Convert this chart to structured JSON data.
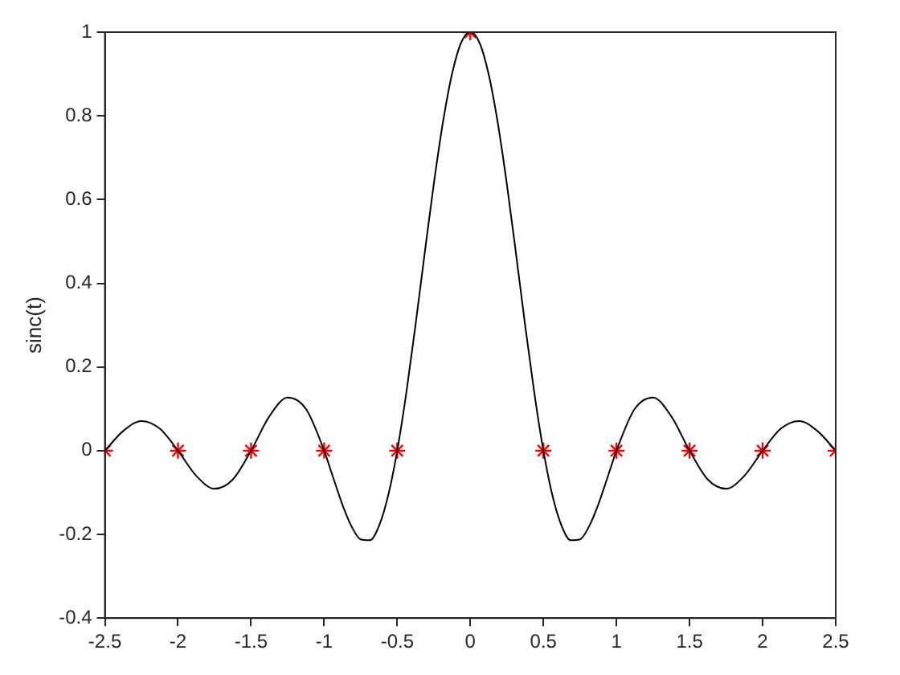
{
  "chart_data": {
    "type": "line",
    "ylabel": "sinc(t)",
    "xlim": [
      -2.5,
      2.5
    ],
    "xticks": [
      -2.5,
      -2,
      -1.5,
      -1,
      -0.5,
      0,
      0.5,
      1,
      1.5,
      2,
      2.5
    ],
    "ylim": [
      -0.4,
      1
    ],
    "yticks": [
      -0.4,
      -0.2,
      0,
      0.2,
      0.4,
      0.6,
      0.8,
      1
    ],
    "grid": false,
    "legend": false,
    "series": [
      {
        "color": "#000000",
        "marker": "none",
        "x": [
          -2.5,
          -2.375,
          -2.25,
          -2.125,
          -2,
          -1.875,
          -1.75,
          -1.625,
          -1.5,
          -1.375,
          -1.25,
          -1.125,
          -1,
          -0.9375,
          -0.875,
          -0.8125,
          -0.75,
          -0.6875,
          -0.625,
          -0.5625,
          -0.5,
          -0.4375,
          -0.375,
          -0.3125,
          -0.25,
          -0.1875,
          -0.125,
          -0.0625,
          0,
          0.0625,
          0.125,
          0.1875,
          0.25,
          0.3125,
          0.375,
          0.4375,
          0.5,
          0.5625,
          0.625,
          0.6875,
          0.75,
          0.8125,
          0.875,
          0.9375,
          1,
          1.125,
          1.25,
          1.375,
          1.5,
          1.625,
          1.75,
          1.875,
          2,
          2.125,
          2.25,
          2.375,
          2.5
        ],
        "values": [
          0,
          0.047,
          0.071,
          0.053,
          0,
          -0.06,
          -0.091,
          -0.069,
          0,
          0.082,
          0.127,
          0.1,
          0,
          -0.065,
          -0.129,
          -0.181,
          -0.212,
          -0.214,
          -0.18,
          -0.108,
          0,
          0.139,
          0.3,
          0.471,
          0.637,
          0.784,
          0.9,
          0.975,
          1,
          0.975,
          0.9,
          0.784,
          0.637,
          0.471,
          0.3,
          0.139,
          0,
          -0.108,
          -0.18,
          -0.214,
          -0.212,
          -0.181,
          -0.129,
          -0.065,
          0,
          0.1,
          0.127,
          0.082,
          0,
          -0.069,
          -0.091,
          -0.06,
          0,
          0.053,
          0.071,
          0.047,
          0
        ]
      },
      {
        "type": "scatter",
        "color": "#ff0000",
        "marker": "cross",
        "x": [
          -2.5,
          -2,
          -1.5,
          -1,
          -0.5,
          0,
          0.5,
          1,
          1.5,
          2,
          2.5
        ],
        "values": [
          0,
          0,
          0,
          0,
          0,
          1,
          0,
          0,
          0,
          0,
          0
        ]
      }
    ]
  }
}
